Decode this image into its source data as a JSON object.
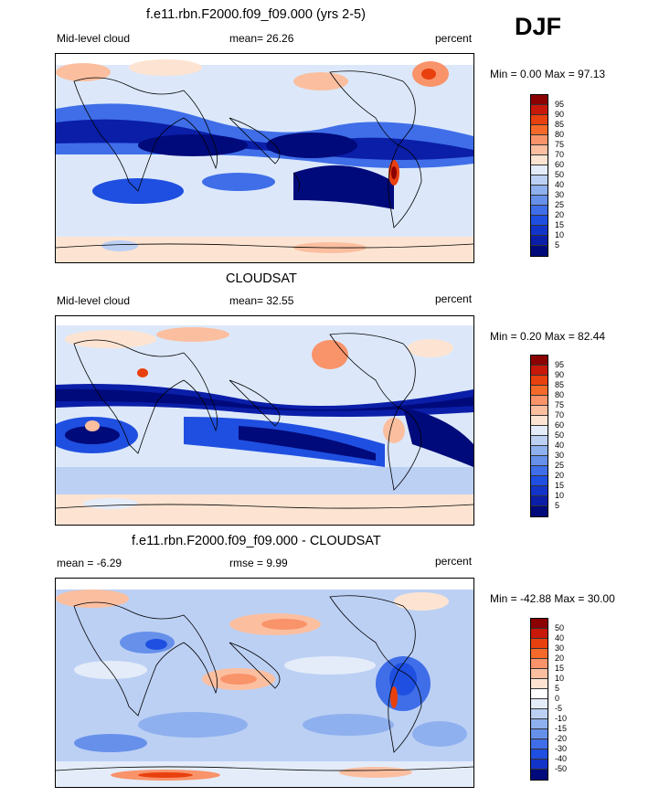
{
  "season": "DJF",
  "panels": [
    {
      "title": "f.e11.rbn.F2000.f09_f09.000 (yrs 2-5)",
      "left_label": "Mid-level cloud",
      "center_label": "mean=  26.26",
      "right_label": "percent",
      "minmax": "Min =   0.00 Max =  97.13",
      "colorbar_labels": [
        "95",
        "90",
        "85",
        "80",
        "75",
        "70",
        "60",
        "50",
        "40",
        "30",
        "25",
        "20",
        "15",
        "10",
        "5"
      ]
    },
    {
      "title": "CLOUDSAT",
      "left_label": "Mid-level cloud",
      "center_label": "mean=  32.55",
      "right_label": "percent",
      "minmax": "Min =   0.20 Max =  82.44",
      "colorbar_labels": [
        "95",
        "90",
        "85",
        "80",
        "75",
        "70",
        "60",
        "50",
        "40",
        "30",
        "25",
        "20",
        "15",
        "10",
        "5"
      ]
    },
    {
      "title": "f.e11.rbn.F2000.f09_f09.000 - CLOUDSAT",
      "left_label": "mean =  -6.29",
      "center_label": "rmse =   9.99",
      "right_label": "percent",
      "minmax": "Min = -42.88 Max =  30.00",
      "colorbar_labels": [
        "50",
        "40",
        "30",
        "20",
        "15",
        "10",
        "5",
        "0",
        "-5",
        "-10",
        "-15",
        "-20",
        "-30",
        "-40",
        "-50"
      ]
    }
  ],
  "colors": {
    "abs_scale": [
      "#8b0000",
      "#c8180a",
      "#e8400e",
      "#f56a2a",
      "#f9936a",
      "#fbbfa0",
      "#fde4d2",
      "#e4ecfa",
      "#bcd0f4",
      "#8fb0ee",
      "#6690ea",
      "#3f6ee8",
      "#1f4fe0",
      "#1234c8",
      "#0a1ea8",
      "#000a7a"
    ],
    "diff_scale": [
      "#8b0000",
      "#c8180a",
      "#e8400e",
      "#f56a2a",
      "#f9936a",
      "#fbbfa0",
      "#fde4d2",
      "#ffffff",
      "#e4ecfa",
      "#bcd0f4",
      "#8fb0ee",
      "#6690ea",
      "#3f6ee8",
      "#1f4fe0",
      "#1234c8",
      "#000a7a"
    ]
  }
}
